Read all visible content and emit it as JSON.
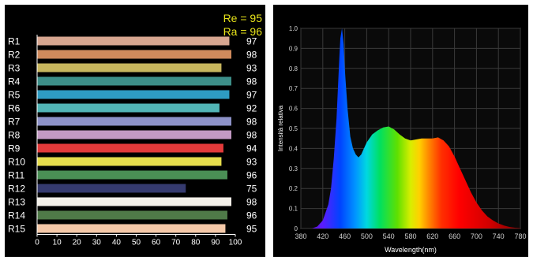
{
  "chart_data": [
    {
      "type": "bar",
      "orientation": "horizontal",
      "summary": {
        "re": "Re = 95",
        "ra": "Ra = 96"
      },
      "categories": [
        "R1",
        "R2",
        "R3",
        "R4",
        "R5",
        "R6",
        "R7",
        "R8",
        "R9",
        "R10",
        "R11",
        "R12",
        "R13",
        "R14",
        "R15"
      ],
      "values": [
        97,
        98,
        93,
        98,
        97,
        92,
        98,
        98,
        94,
        93,
        96,
        75,
        98,
        96,
        95
      ],
      "colors": [
        "#d7a690",
        "#d08a5c",
        "#c7b65e",
        "#3d8f89",
        "#2e9cc3",
        "#52b5b6",
        "#8d92c8",
        "#c39ac4",
        "#e33a3a",
        "#e6dd4c",
        "#4a8f55",
        "#353a6e",
        "#f4f1ea",
        "#4f7a48",
        "#f4c8a8"
      ],
      "xlim": [
        0,
        100
      ],
      "xticks": [
        "0",
        "10",
        "20",
        "30",
        "40",
        "50",
        "60",
        "70",
        "80",
        "90",
        "100"
      ]
    },
    {
      "type": "area",
      "xlabel": "Wavelength(nm)",
      "ylabel": "Intensità relativa",
      "xlim": [
        380,
        780
      ],
      "ylim": [
        0,
        1.0
      ],
      "xticks": [
        "380",
        "420",
        "460",
        "500",
        "540",
        "580",
        "620",
        "660",
        "700",
        "740",
        "780"
      ],
      "yticks": [
        "0",
        "0.1",
        "0.2",
        "0.3",
        "0.4",
        "0.5",
        "0.6",
        "0.7",
        "0.8",
        "0.9",
        "1.0"
      ],
      "grid": true,
      "x": [
        380,
        400,
        410,
        420,
        430,
        435,
        440,
        445,
        450,
        452,
        455,
        458,
        460,
        465,
        470,
        475,
        480,
        485,
        490,
        495,
        500,
        510,
        520,
        530,
        540,
        550,
        560,
        570,
        580,
        590,
        600,
        610,
        620,
        630,
        640,
        650,
        660,
        670,
        680,
        690,
        700,
        710,
        720,
        730,
        740,
        750,
        760,
        770,
        780
      ],
      "y": [
        0.0,
        0.0,
        0.01,
        0.04,
        0.12,
        0.2,
        0.35,
        0.55,
        0.85,
        0.95,
        1.0,
        0.92,
        0.8,
        0.6,
        0.46,
        0.4,
        0.37,
        0.355,
        0.37,
        0.4,
        0.43,
        0.47,
        0.49,
        0.505,
        0.51,
        0.495,
        0.47,
        0.45,
        0.44,
        0.445,
        0.45,
        0.45,
        0.45,
        0.455,
        0.44,
        0.41,
        0.36,
        0.3,
        0.24,
        0.18,
        0.13,
        0.09,
        0.06,
        0.04,
        0.025,
        0.015,
        0.008,
        0.004,
        0.002
      ]
    }
  ]
}
